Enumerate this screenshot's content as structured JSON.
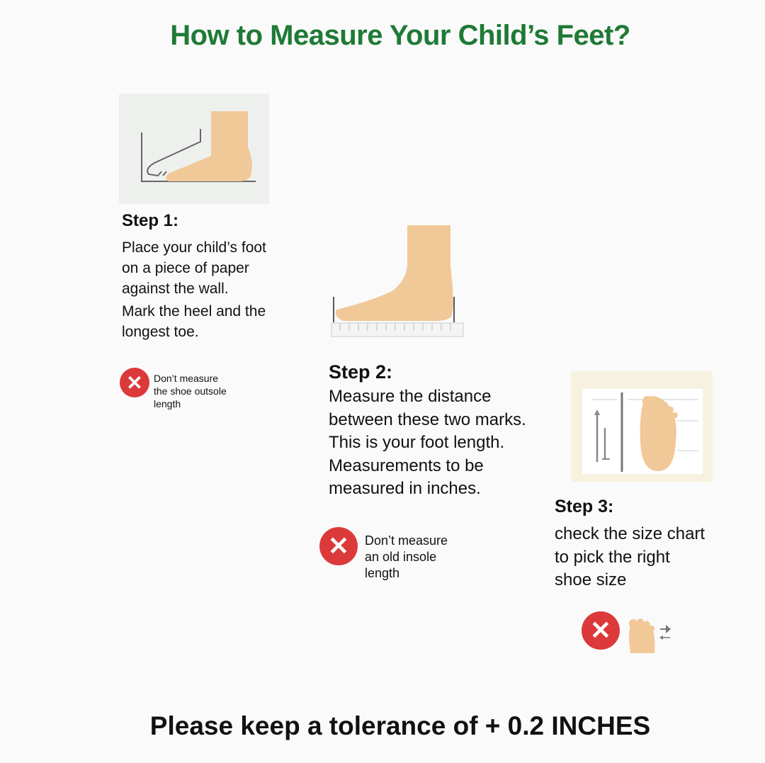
{
  "title": "How to Measure Your Child’s Feet?",
  "steps": [
    {
      "heading": "Step 1:",
      "lines": [
        "Place your child’s foot",
        "on a piece of paper",
        "against the wall.",
        "Mark the heel and the",
        "longest toe."
      ]
    },
    {
      "heading": "Step 2:",
      "lines": [
        "Measure the distance",
        "between these two marks.",
        "This is your foot length.",
        "Measurements to be",
        "measured in inches."
      ]
    },
    {
      "heading": "Step 3:",
      "lines": [
        "check the size chart",
        "to pick the right",
        "shoe size"
      ]
    }
  ],
  "warnings": [
    {
      "icon": "x-circle-icon",
      "lines": [
        "Don’t measure",
        "the shoe outsole",
        "length"
      ]
    },
    {
      "icon": "x-circle-icon",
      "lines": [
        "Don’t measure",
        "an old insole",
        "length"
      ]
    },
    {
      "icon": "x-circle-icon",
      "lines": []
    }
  ],
  "footer": "Please keep a tolerance of + 0.2 INCHES",
  "colors": {
    "title": "#1e7a35",
    "warning": "#dc3a3a",
    "skin": "#f1c898"
  }
}
